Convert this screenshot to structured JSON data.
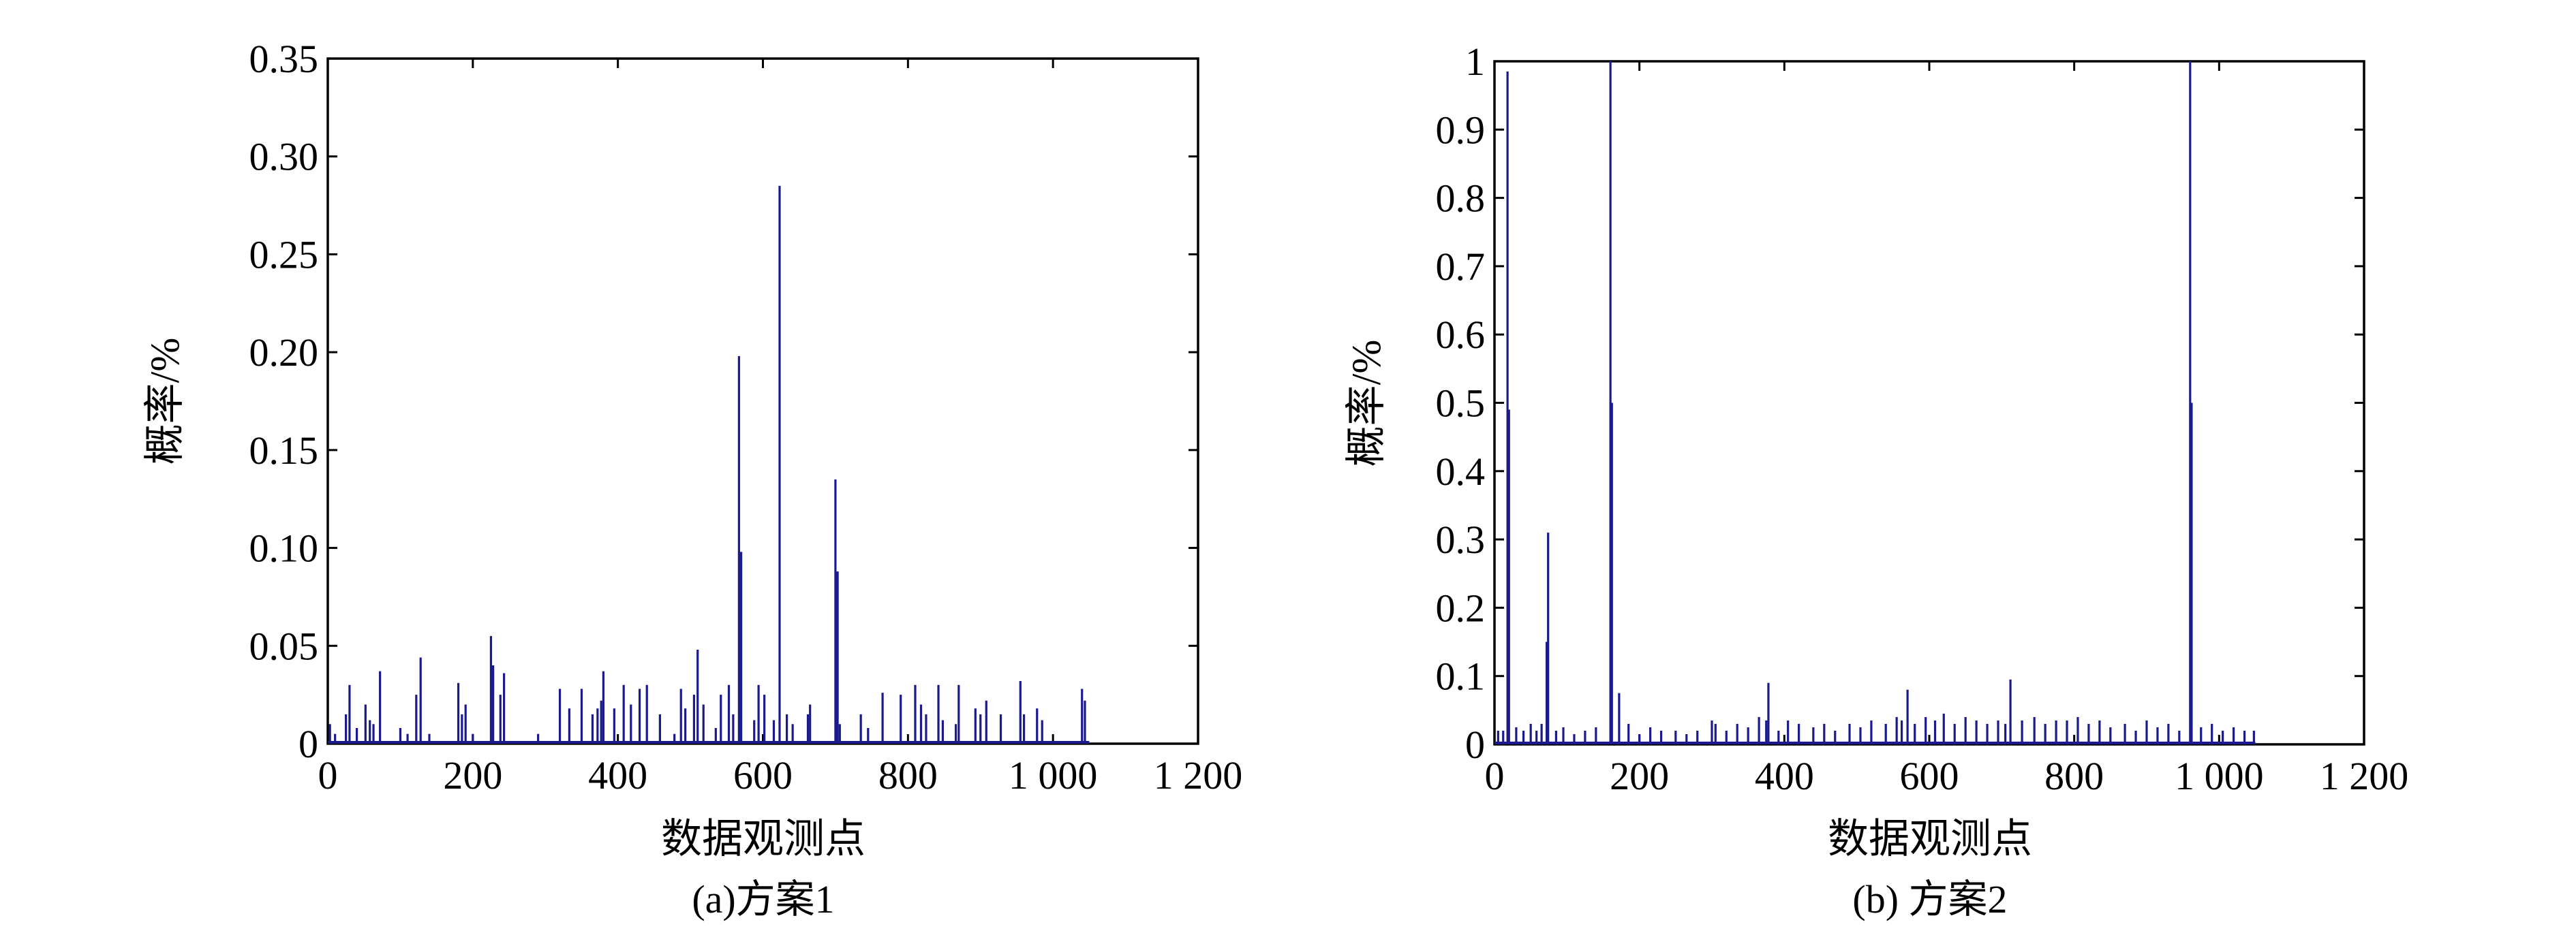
{
  "figure": {
    "colors": {
      "series": "#1a1a8c",
      "axis": "#000000",
      "background": "#ffffff"
    },
    "panels": [
      {
        "caption": "(a)方案1",
        "xlabel": "数据观测点",
        "ylabel": "概率/%"
      },
      {
        "caption": "(b) 方案2",
        "xlabel": "数据观测点",
        "ylabel": "概率/%"
      }
    ]
  },
  "chart_data": [
    {
      "type": "bar",
      "title": "",
      "caption": "(a)方案1",
      "xlabel": "数据观测点",
      "ylabel": "概率/%",
      "xlim": [
        0,
        1200
      ],
      "ylim": [
        0,
        0.35
      ],
      "xticks": [
        0,
        200,
        400,
        600,
        800,
        1000,
        1200
      ],
      "xtick_labels": [
        "0",
        "200",
        "400",
        "600",
        "800",
        "1 000",
        "1 200"
      ],
      "yticks": [
        0,
        0.05,
        0.1,
        0.15,
        0.2,
        0.25,
        0.3,
        0.35
      ],
      "ytick_labels": [
        "0",
        "0.05",
        "0.10",
        "0.15",
        "0.20",
        "0.25",
        "0.30",
        "0.35"
      ],
      "grid": false,
      "series": [
        {
          "x": [
            3,
            10,
            25,
            30,
            40,
            52,
            58,
            63,
            72,
            100,
            110,
            122,
            128,
            140,
            180,
            185,
            190,
            200,
            225,
            228,
            238,
            243,
            290,
            320,
            333,
            350,
            365,
            372,
            377,
            380,
            395,
            408,
            418,
            430,
            440,
            458,
            478,
            487,
            493,
            505,
            510,
            518,
            535,
            542,
            553,
            559,
            567,
            570,
            588,
            594,
            602,
            615,
            623,
            633,
            641,
            662,
            665,
            700,
            703,
            706,
            735,
            745,
            765,
            790,
            810,
            818,
            825,
            842,
            848,
            866,
            870,
            893,
            900,
            908,
            928,
            955,
            960,
            978,
            985,
            1040,
            1044
          ],
          "values": [
            0.01,
            0.005,
            0.015,
            0.03,
            0.008,
            0.02,
            0.012,
            0.01,
            0.037,
            0.008,
            0.005,
            0.025,
            0.044,
            0.005,
            0.031,
            0.015,
            0.02,
            0.005,
            0.055,
            0.04,
            0.025,
            0.036,
            0.005,
            0.028,
            0.018,
            0.028,
            0.015,
            0.018,
            0.022,
            0.037,
            0.018,
            0.03,
            0.02,
            0.028,
            0.03,
            0.015,
            0.005,
            0.028,
            0.018,
            0.025,
            0.048,
            0.02,
            0.008,
            0.025,
            0.03,
            0.015,
            0.198,
            0.098,
            0.012,
            0.03,
            0.025,
            0.012,
            0.285,
            0.015,
            0.01,
            0.015,
            0.02,
            0.135,
            0.088,
            0.01,
            0.015,
            0.008,
            0.026,
            0.025,
            0.03,
            0.02,
            0.015,
            0.03,
            0.012,
            0.01,
            0.03,
            0.018,
            0.015,
            0.022,
            0.015,
            0.032,
            0.015,
            0.018,
            0.012,
            0.028,
            0.022
          ]
        }
      ]
    },
    {
      "type": "bar",
      "title": "",
      "caption": "(b) 方案2",
      "xlabel": "数据观测点",
      "ylabel": "概率/%",
      "xlim": [
        0,
        1200
      ],
      "ylim": [
        0,
        1
      ],
      "xticks": [
        0,
        200,
        400,
        600,
        800,
        1000,
        1200
      ],
      "xtick_labels": [
        "0",
        "200",
        "400",
        "600",
        "800",
        "1 000",
        "1 200"
      ],
      "yticks": [
        0,
        0.1,
        0.2,
        0.3,
        0.4,
        0.5,
        0.6,
        0.7,
        0.8,
        0.9,
        1
      ],
      "ytick_labels": [
        "0",
        "0.1",
        "0.2",
        "0.3",
        "0.4",
        "0.5",
        "0.6",
        "0.7",
        "0.8",
        "0.9",
        "1"
      ],
      "grid": false,
      "series": [
        {
          "x": [
            5,
            12,
            18,
            20,
            30,
            40,
            50,
            58,
            65,
            72,
            74,
            85,
            95,
            110,
            125,
            140,
            160,
            162,
            172,
            185,
            200,
            215,
            230,
            250,
            265,
            280,
            300,
            305,
            320,
            335,
            350,
            365,
            375,
            378,
            392,
            405,
            420,
            440,
            455,
            470,
            490,
            505,
            520,
            540,
            555,
            562,
            570,
            580,
            595,
            608,
            620,
            635,
            650,
            665,
            680,
            695,
            705,
            712,
            728,
            745,
            760,
            775,
            790,
            805,
            820,
            835,
            850,
            870,
            885,
            900,
            915,
            930,
            945,
            960,
            962,
            975,
            990,
            1005,
            1020,
            1035,
            1048
          ],
          "values": [
            0.02,
            0.02,
            0.985,
            0.49,
            0.025,
            0.02,
            0.03,
            0.02,
            0.03,
            0.15,
            0.31,
            0.02,
            0.025,
            0.015,
            0.02,
            0.025,
            1.0,
            0.5,
            0.075,
            0.03,
            0.015,
            0.025,
            0.02,
            0.02,
            0.015,
            0.02,
            0.035,
            0.03,
            0.02,
            0.03,
            0.025,
            0.04,
            0.035,
            0.09,
            0.02,
            0.035,
            0.03,
            0.025,
            0.03,
            0.02,
            0.03,
            0.025,
            0.035,
            0.03,
            0.04,
            0.035,
            0.08,
            0.03,
            0.04,
            0.035,
            0.045,
            0.03,
            0.04,
            0.035,
            0.03,
            0.035,
            0.03,
            0.095,
            0.035,
            0.04,
            0.03,
            0.035,
            0.035,
            0.04,
            0.03,
            0.035,
            0.025,
            0.03,
            0.02,
            0.035,
            0.025,
            0.03,
            0.02,
            1.0,
            0.5,
            0.025,
            0.03,
            0.02,
            0.025,
            0.02,
            0.02
          ]
        }
      ]
    }
  ]
}
